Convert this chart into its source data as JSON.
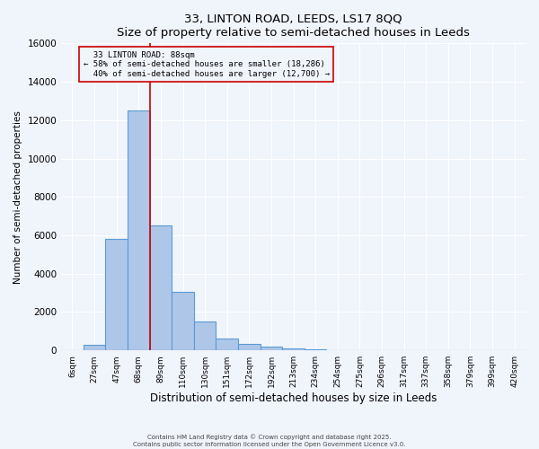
{
  "title": "33, LINTON ROAD, LEEDS, LS17 8QQ",
  "subtitle": "Size of property relative to semi-detached houses in Leeds",
  "xlabel": "Distribution of semi-detached houses by size in Leeds",
  "ylabel": "Number of semi-detached properties",
  "bar_labels": [
    "6sqm",
    "27sqm",
    "47sqm",
    "68sqm",
    "89sqm",
    "110sqm",
    "130sqm",
    "151sqm",
    "172sqm",
    "192sqm",
    "213sqm",
    "234sqm",
    "254sqm",
    "275sqm",
    "296sqm",
    "317sqm",
    "337sqm",
    "358sqm",
    "379sqm",
    "399sqm",
    "420sqm"
  ],
  "bar_values": [
    0,
    300,
    5800,
    12500,
    6500,
    3050,
    1500,
    600,
    350,
    200,
    100,
    50,
    20,
    0,
    0,
    0,
    0,
    0,
    0,
    0,
    0
  ],
  "bar_color": "#aec6e8",
  "bar_edge_color": "#5b9bd5",
  "property_label": "33 LINTON ROAD: 88sqm",
  "pct_smaller": 58,
  "pct_larger": 40,
  "n_smaller": 18286,
  "n_larger": 12700,
  "vline_color": "#cc0000",
  "annotation_box_edge_color": "#cc0000",
  "ylim": [
    0,
    16000
  ],
  "yticks": [
    0,
    2000,
    4000,
    6000,
    8000,
    10000,
    12000,
    14000,
    16000
  ],
  "bg_color": "#f0f4fb",
  "grid_color": "#ffffff",
  "footer_line1": "Contains HM Land Registry data © Crown copyright and database right 2025.",
  "footer_line2": "Contains public sector information licensed under the Open Government Licence v3.0."
}
